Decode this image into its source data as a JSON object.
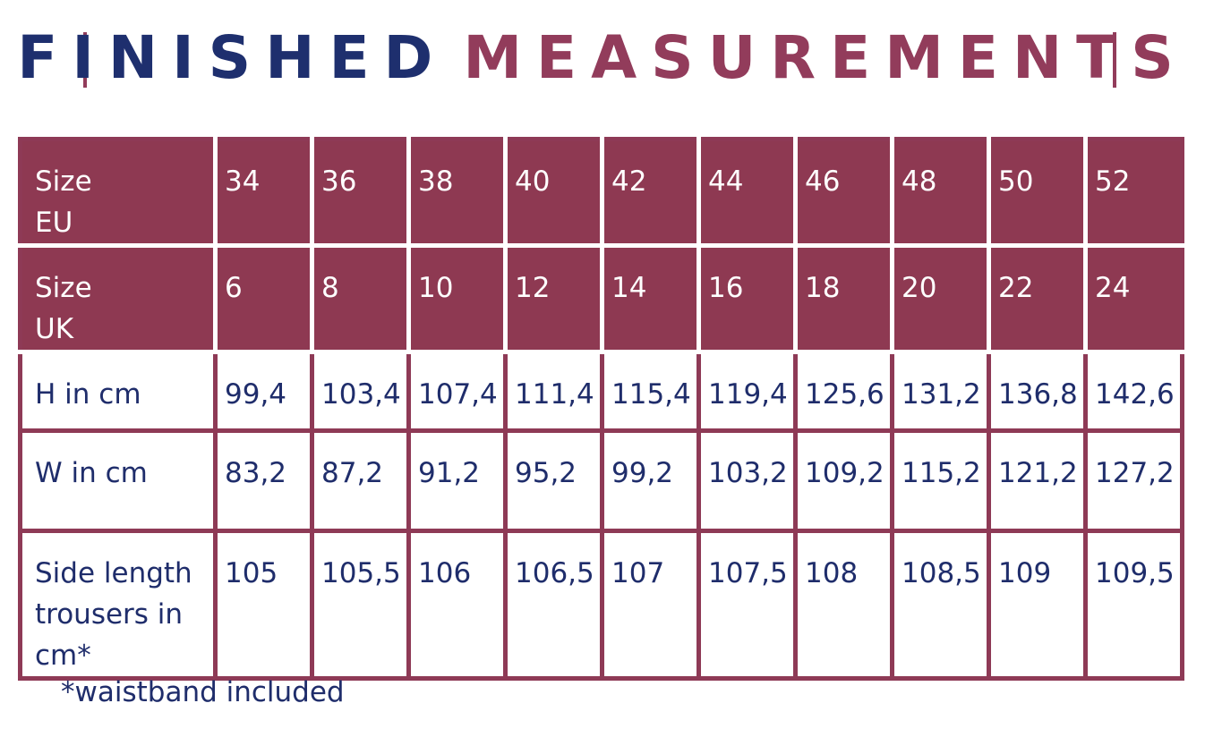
{
  "header": {
    "title_part1": "FINISHED",
    "title_part2": "MEASUREMENTS"
  },
  "table": {
    "rows": [
      [
        "Size\nEU",
        "34",
        "36",
        "38",
        "40",
        "42",
        "44",
        "46",
        "48",
        "50",
        "52"
      ],
      [
        "Size\nUK",
        "6",
        "8",
        "10",
        "12",
        "14",
        "16",
        "18",
        "20",
        "22",
        "24"
      ],
      [
        "H in cm",
        "99,4",
        "103,4",
        "107,4",
        "111,4",
        "115,4",
        "119,4",
        "125,6",
        "131,2",
        "136,8",
        "142,6"
      ],
      [
        "W in cm",
        "83,2",
        "87,2",
        "91,2",
        "95,2",
        "99,2",
        "103,2",
        "109,2",
        "115,2",
        "121,2",
        "127,2"
      ],
      [
        "Side length\ntrousers in\ncm*",
        "105",
        "105,5",
        "106",
        "106,5",
        "107",
        "107,5",
        "108",
        "108,5",
        "109",
        "109,5"
      ]
    ]
  },
  "footnote": "*waistband included"
}
